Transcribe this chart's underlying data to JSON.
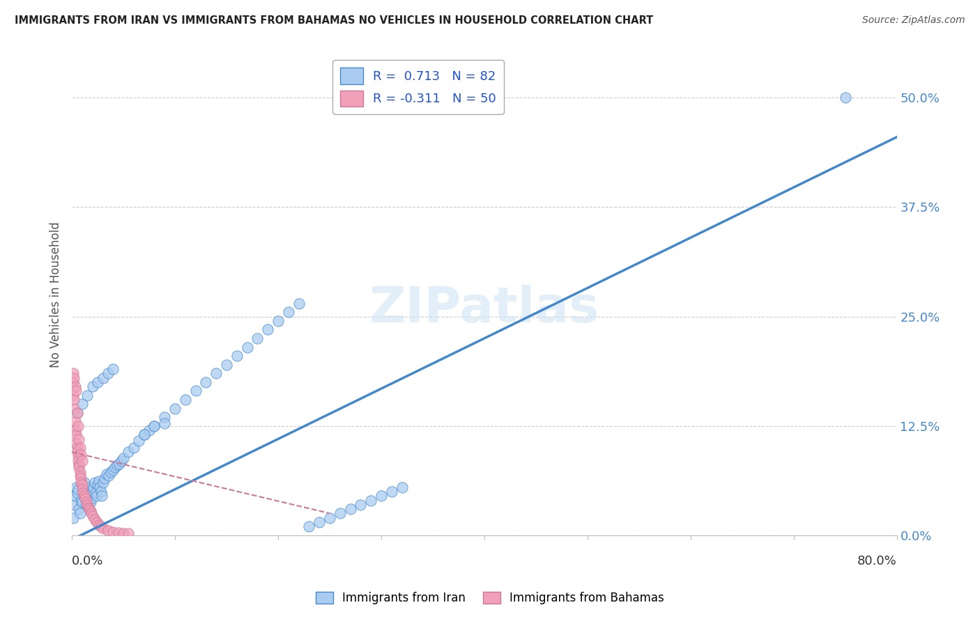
{
  "title": "IMMIGRANTS FROM IRAN VS IMMIGRANTS FROM BAHAMAS NO VEHICLES IN HOUSEHOLD CORRELATION CHART",
  "source": "Source: ZipAtlas.com",
  "ylabel": "No Vehicles in Household",
  "yticks": [
    "0.0%",
    "12.5%",
    "25.0%",
    "37.5%",
    "50.0%"
  ],
  "ytick_vals": [
    0.0,
    0.125,
    0.25,
    0.375,
    0.5
  ],
  "xlim": [
    0.0,
    0.8
  ],
  "ylim": [
    0.0,
    0.55
  ],
  "iran_color": "#aaccf0",
  "bahamas_color": "#f0a0b8",
  "iran_line_color": "#4488cc",
  "bahamas_line_color": "#cc7799",
  "watermark": "ZIPatlas",
  "iran_R": 0.713,
  "iran_N": 82,
  "bahamas_R": -0.311,
  "bahamas_N": 50,
  "iran_scatter_x": [
    0.001,
    0.002,
    0.003,
    0.004,
    0.005,
    0.006,
    0.007,
    0.008,
    0.009,
    0.01,
    0.011,
    0.012,
    0.013,
    0.014,
    0.015,
    0.016,
    0.017,
    0.018,
    0.019,
    0.02,
    0.021,
    0.022,
    0.023,
    0.024,
    0.025,
    0.026,
    0.027,
    0.028,
    0.029,
    0.03,
    0.032,
    0.034,
    0.036,
    0.038,
    0.04,
    0.042,
    0.044,
    0.046,
    0.048,
    0.05,
    0.055,
    0.06,
    0.065,
    0.07,
    0.075,
    0.08,
    0.09,
    0.1,
    0.11,
    0.12,
    0.13,
    0.14,
    0.15,
    0.16,
    0.17,
    0.18,
    0.19,
    0.2,
    0.21,
    0.22,
    0.23,
    0.24,
    0.25,
    0.26,
    0.27,
    0.28,
    0.29,
    0.3,
    0.31,
    0.32,
    0.005,
    0.01,
    0.015,
    0.02,
    0.025,
    0.03,
    0.035,
    0.04,
    0.75,
    0.07,
    0.08,
    0.09
  ],
  "iran_scatter_y": [
    0.02,
    0.035,
    0.045,
    0.055,
    0.048,
    0.052,
    0.03,
    0.025,
    0.04,
    0.038,
    0.05,
    0.06,
    0.042,
    0.035,
    0.055,
    0.048,
    0.045,
    0.038,
    0.042,
    0.05,
    0.055,
    0.06,
    0.048,
    0.045,
    0.058,
    0.062,
    0.055,
    0.05,
    0.045,
    0.06,
    0.065,
    0.07,
    0.068,
    0.072,
    0.075,
    0.078,
    0.08,
    0.082,
    0.085,
    0.088,
    0.095,
    0.1,
    0.108,
    0.115,
    0.12,
    0.125,
    0.135,
    0.145,
    0.155,
    0.165,
    0.175,
    0.185,
    0.195,
    0.205,
    0.215,
    0.225,
    0.235,
    0.245,
    0.255,
    0.265,
    0.01,
    0.015,
    0.02,
    0.025,
    0.03,
    0.035,
    0.04,
    0.045,
    0.05,
    0.055,
    0.14,
    0.15,
    0.16,
    0.17,
    0.175,
    0.18,
    0.185,
    0.19,
    0.5,
    0.115,
    0.125,
    0.128
  ],
  "bahamas_scatter_x": [
    0.001,
    0.001,
    0.002,
    0.002,
    0.003,
    0.003,
    0.004,
    0.004,
    0.005,
    0.005,
    0.006,
    0.006,
    0.007,
    0.007,
    0.008,
    0.008,
    0.009,
    0.009,
    0.01,
    0.01,
    0.011,
    0.012,
    0.013,
    0.014,
    0.015,
    0.016,
    0.017,
    0.018,
    0.019,
    0.02,
    0.022,
    0.024,
    0.026,
    0.028,
    0.03,
    0.035,
    0.04,
    0.045,
    0.05,
    0.055,
    0.001,
    0.002,
    0.003,
    0.004,
    0.005,
    0.006,
    0.007,
    0.008,
    0.009,
    0.01
  ],
  "bahamas_scatter_y": [
    0.16,
    0.175,
    0.155,
    0.145,
    0.13,
    0.12,
    0.115,
    0.105,
    0.1,
    0.095,
    0.09,
    0.085,
    0.08,
    0.078,
    0.072,
    0.068,
    0.065,
    0.06,
    0.058,
    0.052,
    0.048,
    0.045,
    0.042,
    0.038,
    0.035,
    0.032,
    0.03,
    0.028,
    0.025,
    0.022,
    0.018,
    0.015,
    0.012,
    0.01,
    0.008,
    0.005,
    0.004,
    0.003,
    0.002,
    0.002,
    0.185,
    0.18,
    0.17,
    0.165,
    0.14,
    0.125,
    0.11,
    0.1,
    0.092,
    0.085
  ],
  "iran_line_x0": 0.0,
  "iran_line_y0": -0.005,
  "iran_line_x1": 0.8,
  "iran_line_y1": 0.455,
  "bahamas_line_x0": 0.0,
  "bahamas_line_y0": 0.095,
  "bahamas_line_x1": 0.25,
  "bahamas_line_y1": 0.025
}
